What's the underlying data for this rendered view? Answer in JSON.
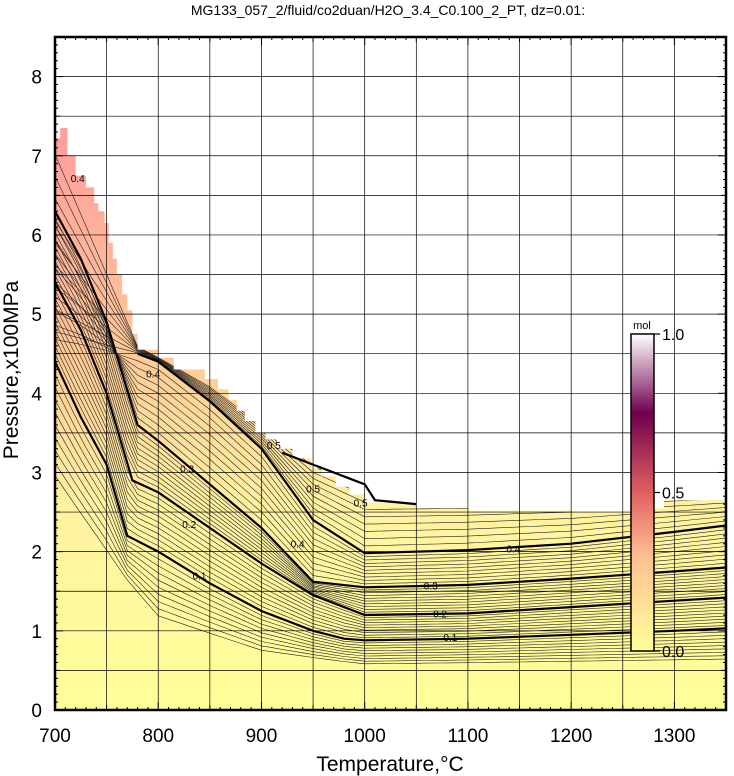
{
  "chart_data": {
    "type": "contour",
    "title": "MG133_057_2/fluid/co2duan/H2O_3.4_C0.100_2_PT, dz=0.01:",
    "xlabel": "Temperature,°C",
    "ylabel": "Pressure,x100MPa",
    "xlim": [
      700,
      1350
    ],
    "ylim": [
      0,
      8.5
    ],
    "x_ticks": [
      "700",
      "800",
      "900",
      "1000",
      "1100",
      "1200",
      "1300"
    ],
    "y_ticks": [
      "0",
      "1",
      "2",
      "3",
      "4",
      "5",
      "6",
      "7",
      "8"
    ],
    "grid": true,
    "colorbar": {
      "unit": "mol",
      "range": [
        0.0,
        1.0
      ],
      "tick_labels": [
        "0.0",
        "0.5",
        "1.0"
      ],
      "colors": [
        "#ffff99",
        "#ffb090",
        "#e05050",
        "#600050",
        "#ffffff"
      ]
    },
    "fill_colors": {
      "low": "#ffff99",
      "high": "#ffa0a0"
    },
    "major_contours": [
      {
        "level": 0.1,
        "label": "0.1",
        "points": [
          [
            700,
            4.4
          ],
          [
            725,
            3.7
          ],
          [
            750,
            3.1
          ],
          [
            770,
            2.2
          ],
          [
            800,
            2.0
          ],
          [
            850,
            1.6
          ],
          [
            900,
            1.25
          ],
          [
            950,
            1.0
          ],
          [
            980,
            0.9
          ],
          [
            1000,
            0.88
          ],
          [
            1100,
            0.9
          ],
          [
            1200,
            0.95
          ],
          [
            1300,
            1.0
          ],
          [
            1350,
            1.03
          ]
        ]
      },
      {
        "level": 0.2,
        "label": "0.2",
        "points": [
          [
            700,
            5.4
          ],
          [
            725,
            4.8
          ],
          [
            750,
            4.0
          ],
          [
            775,
            2.9
          ],
          [
            800,
            2.75
          ],
          [
            850,
            2.3
          ],
          [
            900,
            1.85
          ],
          [
            950,
            1.45
          ],
          [
            1000,
            1.2
          ],
          [
            1100,
            1.22
          ],
          [
            1200,
            1.3
          ],
          [
            1300,
            1.38
          ],
          [
            1350,
            1.42
          ]
        ]
      },
      {
        "level": 0.3,
        "label": "0.3",
        "points": [
          [
            700,
            6.3
          ],
          [
            725,
            5.7
          ],
          [
            750,
            4.9
          ],
          [
            780,
            3.6
          ],
          [
            800,
            3.4
          ],
          [
            850,
            2.85
          ],
          [
            900,
            2.3
          ],
          [
            950,
            1.62
          ],
          [
            1000,
            1.55
          ],
          [
            1100,
            1.58
          ],
          [
            1200,
            1.66
          ],
          [
            1300,
            1.75
          ],
          [
            1350,
            1.8
          ]
        ]
      },
      {
        "level": 0.4,
        "label": "0.4",
        "points": [
          [
            780,
            4.5
          ],
          [
            800,
            4.4
          ],
          [
            850,
            3.9
          ],
          [
            900,
            3.3
          ],
          [
            950,
            2.4
          ],
          [
            1000,
            1.98
          ],
          [
            1100,
            2.02
          ],
          [
            1200,
            2.1
          ],
          [
            1300,
            2.25
          ],
          [
            1350,
            2.33
          ]
        ]
      },
      {
        "level": 0.5,
        "label": "0.5",
        "points": [
          [
            920,
            3.25
          ],
          [
            950,
            3.1
          ],
          [
            1000,
            2.85
          ],
          [
            1010,
            2.65
          ],
          [
            1050,
            2.6
          ]
        ]
      }
    ],
    "contour_labels": [
      {
        "text": "0.1",
        "x": 840,
        "y": 1.7
      },
      {
        "text": "0.2",
        "x": 830,
        "y": 2.35
      },
      {
        "text": "0.3",
        "x": 828,
        "y": 3.05
      },
      {
        "text": "0.4",
        "x": 935,
        "y": 2.1
      },
      {
        "text": "0.4",
        "x": 1144,
        "y": 2.04
      },
      {
        "text": "0.5",
        "x": 950,
        "y": 2.8
      },
      {
        "text": "0.5",
        "x": 996,
        "y": 2.62
      },
      {
        "text": "0.3",
        "x": 1064,
        "y": 1.57
      },
      {
        "text": "0.2",
        "x": 1073,
        "y": 1.22
      },
      {
        "text": "0.1",
        "x": 1083,
        "y": 0.92
      },
      {
        "text": "0.4",
        "x": 795,
        "y": 4.25
      },
      {
        "text": "0.5",
        "x": 912,
        "y": 3.35
      },
      {
        "text": "0.4",
        "x": 722,
        "y": 6.72
      }
    ],
    "stability_boundary": [
      [
        700,
        7.22
      ],
      [
        705,
        7.22
      ],
      [
        705,
        7.35
      ],
      [
        712,
        7.35
      ],
      [
        712,
        7.0
      ],
      [
        720,
        7.0
      ],
      [
        720,
        6.75
      ],
      [
        730,
        6.75
      ],
      [
        730,
        6.6
      ],
      [
        738,
        6.6
      ],
      [
        738,
        6.4
      ],
      [
        742,
        6.4
      ],
      [
        742,
        6.3
      ],
      [
        748,
        6.3
      ],
      [
        748,
        6.15
      ],
      [
        752,
        6.15
      ],
      [
        752,
        5.9
      ],
      [
        756,
        5.9
      ],
      [
        756,
        5.7
      ],
      [
        760,
        5.7
      ],
      [
        760,
        5.5
      ],
      [
        765,
        5.5
      ],
      [
        765,
        5.25
      ],
      [
        770,
        5.25
      ],
      [
        770,
        5.05
      ],
      [
        775,
        5.05
      ],
      [
        775,
        4.75
      ],
      [
        780,
        4.75
      ],
      [
        780,
        4.55
      ],
      [
        800,
        4.55
      ],
      [
        800,
        4.45
      ],
      [
        815,
        4.45
      ],
      [
        815,
        4.3
      ],
      [
        845,
        4.3
      ],
      [
        845,
        4.18
      ],
      [
        858,
        4.18
      ],
      [
        858,
        4.05
      ],
      [
        868,
        4.05
      ],
      [
        868,
        3.92
      ],
      [
        876,
        3.92
      ],
      [
        876,
        3.78
      ],
      [
        884,
        3.78
      ],
      [
        884,
        3.65
      ],
      [
        894,
        3.65
      ],
      [
        894,
        3.5
      ],
      [
        904,
        3.5
      ],
      [
        904,
        3.42
      ],
      [
        915,
        3.42
      ],
      [
        915,
        3.3
      ],
      [
        930,
        3.3
      ],
      [
        930,
        3.18
      ],
      [
        948,
        3.18
      ],
      [
        948,
        3.05
      ],
      [
        958,
        3.05
      ],
      [
        958,
        2.95
      ],
      [
        972,
        2.95
      ],
      [
        972,
        2.82
      ],
      [
        985,
        2.82
      ],
      [
        985,
        2.72
      ],
      [
        1000,
        2.72
      ],
      [
        1000,
        2.62
      ],
      [
        1050,
        2.62
      ],
      [
        1050,
        2.55
      ],
      [
        1100,
        2.55
      ],
      [
        1100,
        2.52
      ],
      [
        1200,
        2.52
      ],
      [
        1200,
        2.5
      ],
      [
        1260,
        2.5
      ],
      [
        1260,
        2.55
      ],
      [
        1290,
        2.55
      ],
      [
        1290,
        2.65
      ],
      [
        1350,
        2.65
      ]
    ]
  }
}
